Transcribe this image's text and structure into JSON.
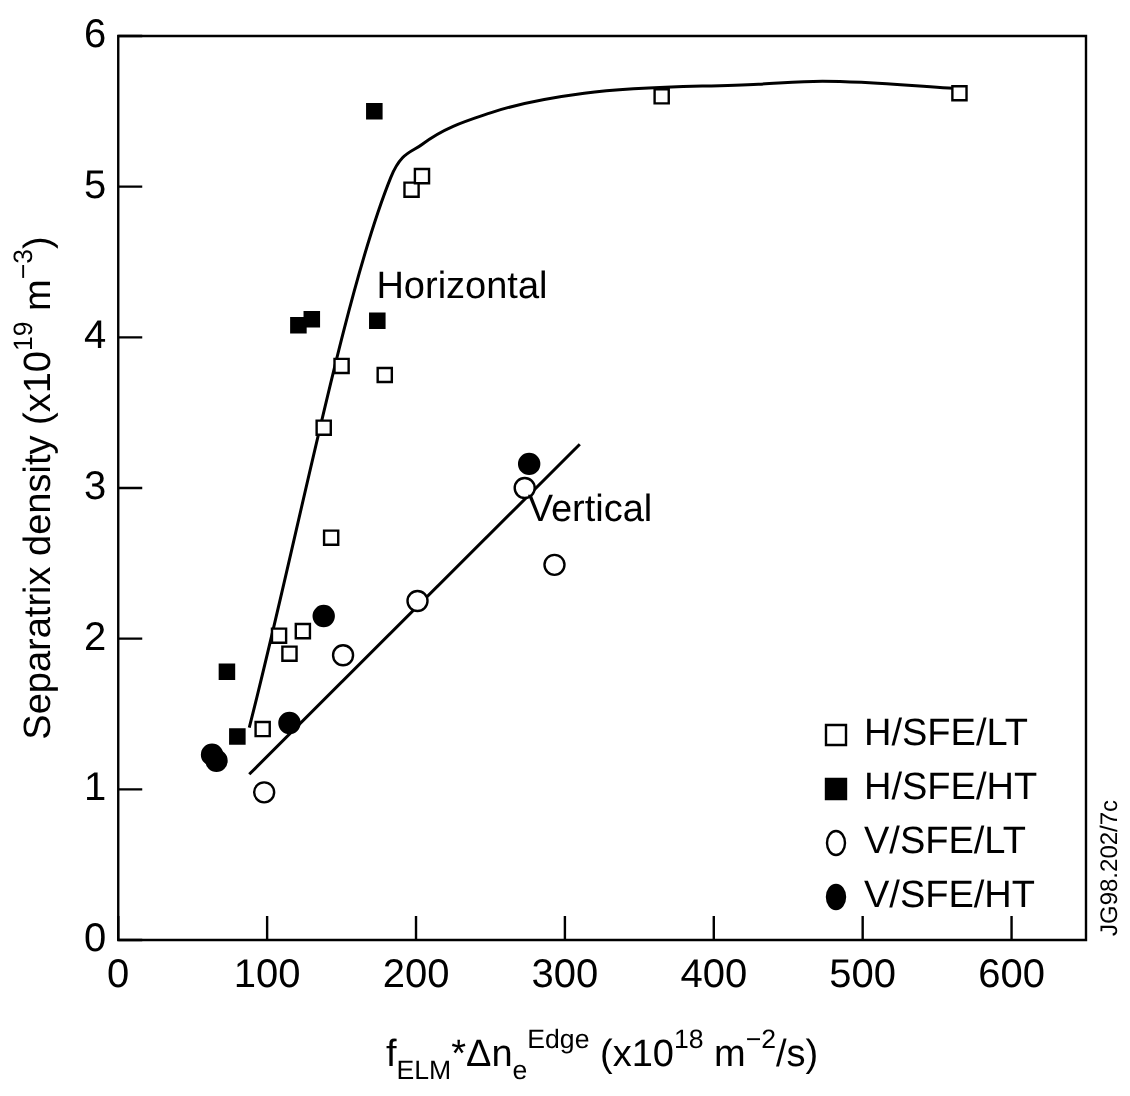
{
  "chart_data": {
    "type": "scatter",
    "xlabel": "f$_{ELM}$*Δn$_{e}$$^{Edge}$ (x10$^{18}$ m$^{−2}$/s)",
    "ylabel": "Separatrix density (x10$^{19}$ m$^{−3}$)",
    "xlim": [
      0,
      650
    ],
    "ylim": [
      0,
      6
    ],
    "xticks": [
      0,
      100,
      200,
      300,
      400,
      500,
      600
    ],
    "yticks": [
      0,
      1,
      2,
      3,
      4,
      5,
      6
    ],
    "grid": false,
    "legend": "bottom right",
    "series": [
      {
        "name": "H/SFE/LT",
        "color": "#ffffff",
        "marker": "square",
        "x": [
          365,
          565,
          197,
          204,
          150,
          179,
          138,
          143,
          108,
          124,
          115,
          97
        ],
        "values": [
          5.6,
          5.62,
          4.98,
          5.07,
          3.81,
          3.75,
          3.4,
          2.67,
          2.02,
          2.05,
          1.9,
          1.4
        ]
      },
      {
        "name": "H/SFE/HT",
        "color": "#000000",
        "marker": "square",
        "x": [
          172,
          121,
          130,
          174,
          73,
          80
        ],
        "values": [
          5.5,
          4.08,
          4.12,
          4.11,
          1.78,
          1.35
        ]
      },
      {
        "name": "V/SFE/LT",
        "color": "#ffffff",
        "marker": "circle",
        "x": [
          98,
          151,
          201,
          273,
          293
        ],
        "values": [
          0.98,
          1.89,
          2.25,
          3.0,
          2.49
        ]
      },
      {
        "name": "V/SFE/HT",
        "color": "#000000",
        "marker": "circle",
        "x": [
          63,
          66,
          115,
          138,
          276
        ],
        "values": [
          1.23,
          1.19,
          1.44,
          2.15,
          3.16
        ]
      },
      {
        "name": "Horizontal",
        "type": "line",
        "color": "#000000",
        "marker": "none",
        "x": [
          88,
          183,
          204,
          250,
          313,
          430,
          473,
          567
        ],
        "values": [
          1.41,
          5.06,
          5.28,
          5.49,
          5.62,
          5.68,
          5.7,
          5.65
        ]
      },
      {
        "name": "Vertical",
        "type": "line",
        "color": "#000000",
        "marker": "none",
        "x": [
          88,
          310
        ],
        "values": [
          1.1,
          3.29
        ]
      }
    ],
    "annotations": [
      "JG98.202/7c"
    ]
  }
}
